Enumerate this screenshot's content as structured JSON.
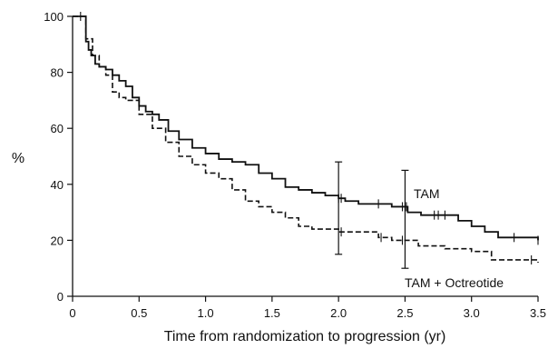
{
  "chart_data": {
    "type": "line",
    "title": "",
    "xlabel": "Time from randomization to progression (yr)",
    "ylabel": "%",
    "xlim": [
      0,
      3.5
    ],
    "ylim": [
      0,
      100
    ],
    "x_ticks": [
      0,
      0.5,
      1.0,
      1.5,
      2.0,
      2.5,
      3.0,
      3.5
    ],
    "x_tick_labels": [
      "0",
      "0.5",
      "1.0",
      "1.5",
      "2.0",
      "2.5",
      "3.0",
      "3.5"
    ],
    "y_ticks": [
      0,
      20,
      40,
      60,
      80,
      100
    ],
    "y_tick_labels": [
      "0",
      "20",
      "40",
      "60",
      "80",
      "100"
    ],
    "grid": false,
    "series": [
      {
        "name": "TAM",
        "style": "solid",
        "color": "#111111",
        "x": [
          0,
          0.1,
          0.12,
          0.14,
          0.17,
          0.2,
          0.25,
          0.3,
          0.35,
          0.4,
          0.45,
          0.5,
          0.55,
          0.6,
          0.65,
          0.72,
          0.8,
          0.9,
          1.0,
          1.1,
          1.2,
          1.3,
          1.4,
          1.5,
          1.6,
          1.7,
          1.8,
          1.9,
          2.0,
          2.05,
          2.15,
          2.4,
          2.52,
          2.62,
          2.9,
          3.0,
          3.1,
          3.2,
          3.5
        ],
        "y": [
          100,
          91,
          88,
          86,
          83,
          82,
          81,
          79,
          77,
          75,
          71,
          68,
          66,
          65,
          63,
          59,
          56,
          53,
          51,
          49,
          48,
          47,
          44,
          42,
          39,
          38,
          37,
          36,
          35,
          34,
          33,
          32,
          30,
          29,
          27,
          25,
          23,
          21,
          20
        ]
      },
      {
        "name": "TAM + Octreotide",
        "style": "dashed",
        "color": "#111111",
        "x": [
          0,
          0.1,
          0.15,
          0.2,
          0.25,
          0.3,
          0.35,
          0.4,
          0.5,
          0.6,
          0.7,
          0.8,
          0.9,
          1.0,
          1.1,
          1.2,
          1.3,
          1.4,
          1.5,
          1.6,
          1.7,
          1.8,
          1.9,
          2.0,
          2.3,
          2.4,
          2.6,
          2.8,
          3.0,
          3.15,
          3.5
        ],
        "y": [
          100,
          92,
          86,
          82,
          79,
          73,
          71,
          70,
          65,
          60,
          55,
          50,
          47,
          44,
          42,
          38,
          34,
          32,
          30,
          28,
          25,
          24,
          24,
          23,
          21,
          20,
          18,
          17,
          16,
          13,
          12
        ]
      }
    ],
    "censor_marks": [
      {
        "series": "TAM",
        "x": [
          0.06,
          2.0,
          2.02,
          2.3,
          2.48,
          2.5,
          2.51,
          2.72,
          2.75,
          2.8,
          3.32,
          3.5
        ]
      },
      {
        "series": "TAM + Octreotide",
        "x": [
          2.02,
          2.32,
          2.48,
          3.45
        ]
      }
    ],
    "error_bars": [
      {
        "x": 2.0,
        "lower": 15,
        "upper": 48
      },
      {
        "x": 2.5,
        "lower": 10,
        "upper": 45
      }
    ],
    "annotations": [
      {
        "text": "TAM",
        "series": "TAM"
      },
      {
        "text": "TAM + Octreotide",
        "series": "TAM + Octreotide"
      }
    ]
  }
}
